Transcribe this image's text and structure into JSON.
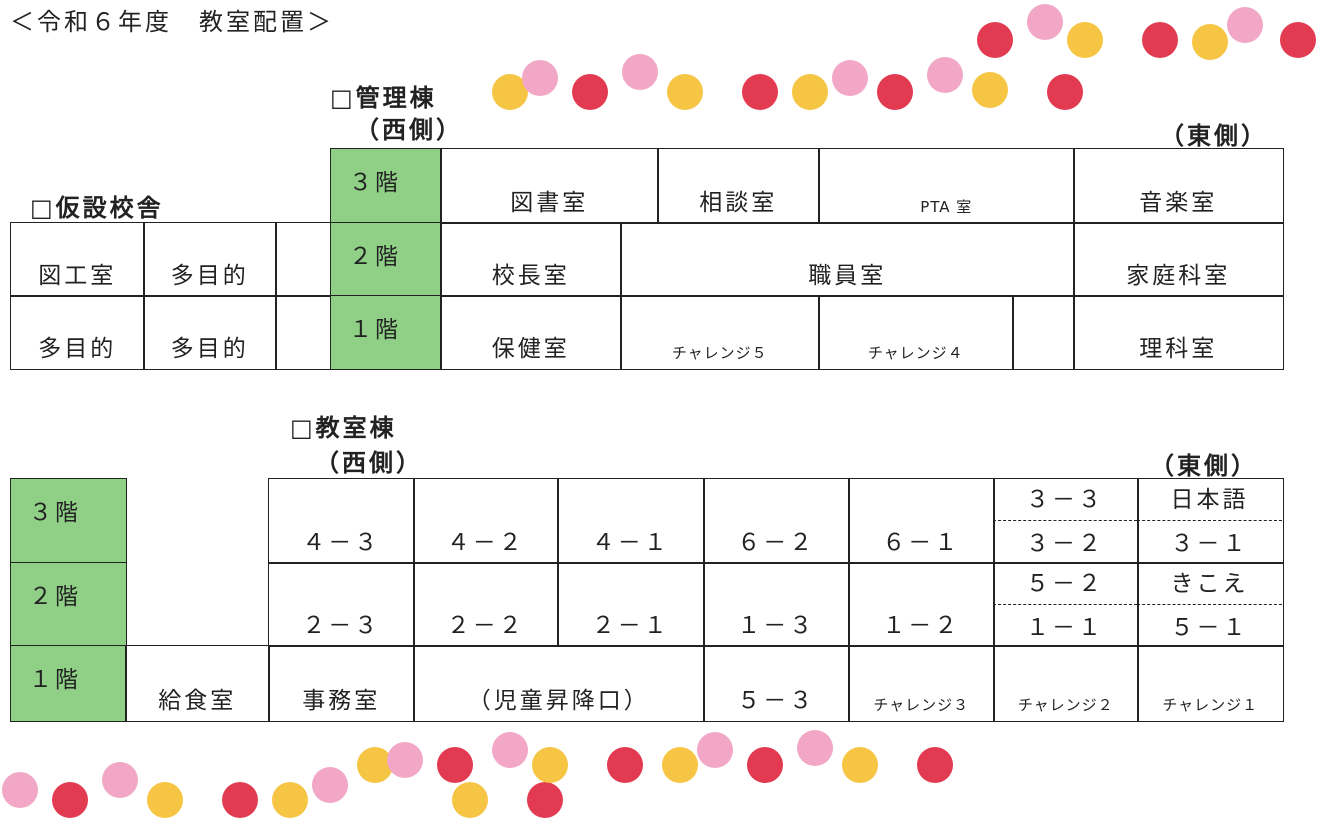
{
  "title": "＜令和６年度　教室配置＞",
  "kanri": {
    "heading": "□管理棟",
    "west": "（西側）",
    "east": "（東側）",
    "floors": [
      "３階",
      "２階",
      "１階"
    ],
    "rows": [
      [
        "図書室",
        "相談室",
        "PTA 室",
        "音楽室"
      ],
      [
        "校長室",
        "職員室",
        "家庭科室"
      ],
      [
        "保健室",
        "チャレンジ５",
        "チャレンジ４",
        "理科室"
      ]
    ]
  },
  "kasetsu": {
    "heading": "□仮設校舎",
    "rows": [
      [
        "図工室",
        "多目的"
      ],
      [
        "多目的",
        "多目的"
      ]
    ]
  },
  "kyoshitsu": {
    "heading": "□教室棟",
    "west": "（西側）",
    "east": "（東側）",
    "floors": [
      "３階",
      "２階",
      "１階"
    ],
    "rows": [
      [
        "４－３",
        "４－２",
        "４－１",
        "６－２",
        "６－１",
        "３－３",
        "３－２",
        "日本語",
        "３－１"
      ],
      [
        "２－３",
        "２－２",
        "２－１",
        "１－３",
        "１－２",
        "５－２",
        "１－１",
        "きこえ",
        "５－１"
      ],
      [
        "給食室",
        "事務室",
        "（児童昇降口）",
        "５－３",
        "チャレンジ３",
        "チャレンジ２",
        "チャレンジ１"
      ]
    ]
  }
}
